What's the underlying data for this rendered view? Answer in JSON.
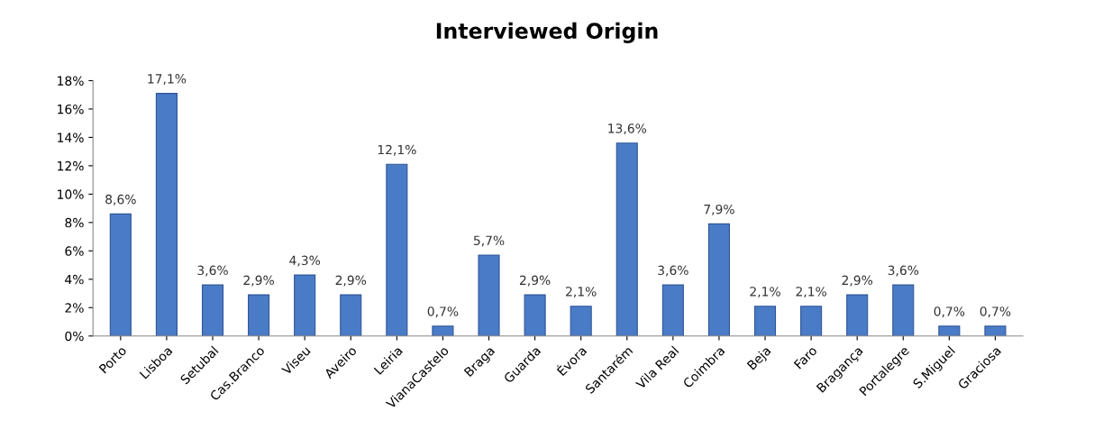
{
  "chart_data": {
    "type": "bar",
    "title": "Interviewed Origin",
    "categories": [
      "Porto",
      "Lisboa",
      "Setubal",
      "Cas.Branco",
      "Viseu",
      "Aveiro",
      "Leiria",
      "VianaCastelo",
      "Braga",
      "Guarda",
      "Évora",
      "Santarém",
      "Vila Real",
      "Coimbra",
      "Beja",
      "Faro",
      "Bragança",
      "Portalegre",
      "S.Miguel",
      "Graciosa"
    ],
    "values": [
      8.6,
      17.1,
      3.6,
      2.9,
      4.3,
      2.9,
      12.1,
      0.7,
      5.7,
      2.9,
      2.1,
      13.6,
      3.6,
      7.9,
      2.1,
      2.1,
      2.9,
      3.6,
      0.7,
      0.7
    ],
    "value_labels": [
      "8,6%",
      "17,1%",
      "3,6%",
      "2,9%",
      "4,3%",
      "2,9%",
      "12,1%",
      "0,7%",
      "5,7%",
      "2,9%",
      "2,1%",
      "13,6%",
      "3,6%",
      "7,9%",
      "2,1%",
      "2,1%",
      "2,9%",
      "3,6%",
      "0,7%",
      "0,7%"
    ],
    "color": "#4a7bc6",
    "ylim": [
      0,
      18
    ],
    "yticks": [
      {
        "value": 0,
        "label": "0%"
      },
      {
        "value": 2,
        "label": "2%"
      },
      {
        "value": 4,
        "label": "4%"
      },
      {
        "value": 6,
        "label": "6%"
      },
      {
        "value": 8,
        "label": "8%"
      },
      {
        "value": 10,
        "label": "10%"
      },
      {
        "value": 12,
        "label": "12%"
      },
      {
        "value": 14,
        "label": "14%"
      },
      {
        "value": 16,
        "label": "16%"
      },
      {
        "value": 18,
        "label": "18%"
      }
    ],
    "grid": false,
    "legend": false
  }
}
